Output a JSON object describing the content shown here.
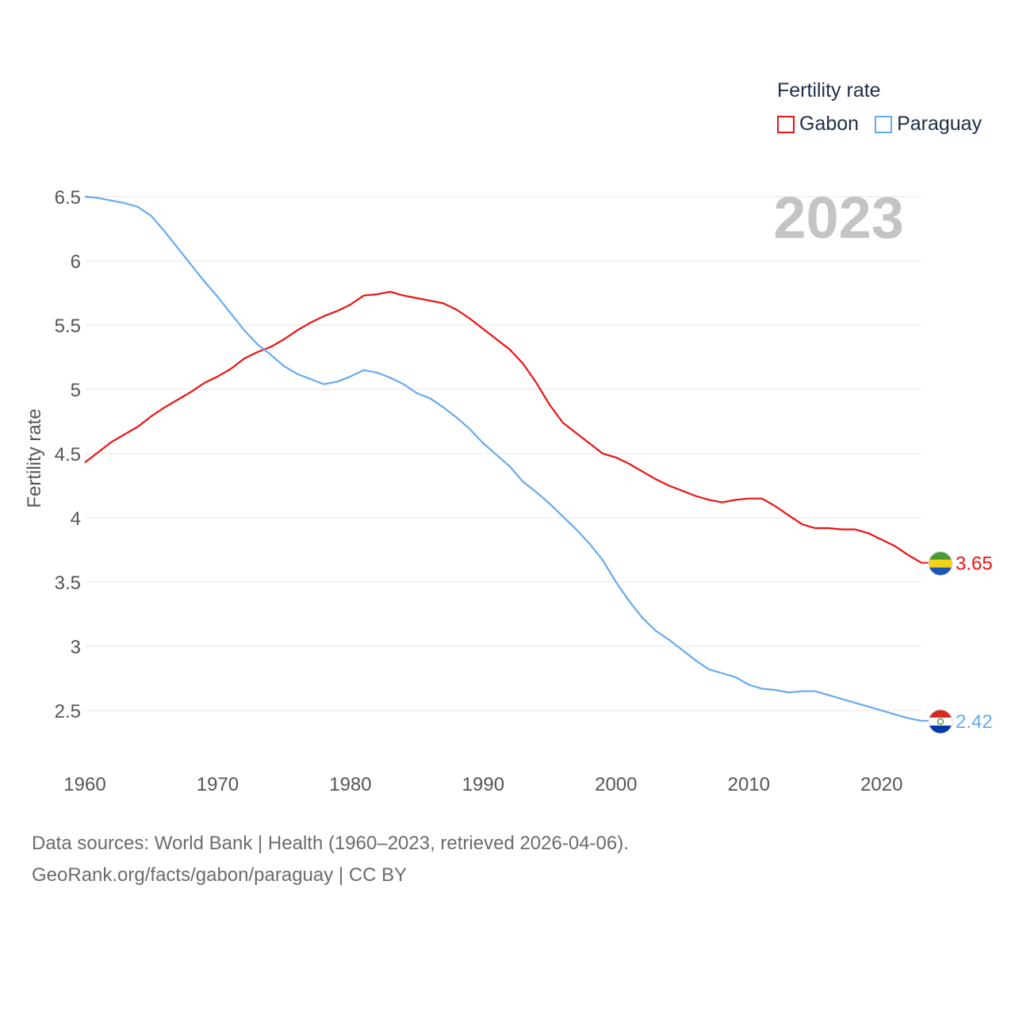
{
  "legend": {
    "title": "Fertility rate",
    "items": [
      {
        "label": "Gabon",
        "color": "#ee1111"
      },
      {
        "label": "Paraguay",
        "color": "#66aaee"
      }
    ]
  },
  "source": {
    "line1": "Data sources: World Bank | Health (1960–2023, retrieved 2026-04-06).",
    "line2": "GeoRank.org/facts/gabon/paraguay | CC BY"
  },
  "chart_data": {
    "type": "line",
    "year_label": "2023",
    "ylabel": "Fertility rate",
    "xlabel": "",
    "xlim": [
      1960,
      2023
    ],
    "ylim": [
      2.1,
      6.6
    ],
    "xticks": [
      1960,
      1970,
      1980,
      1990,
      2000,
      2010,
      2020
    ],
    "yticks": [
      2.5,
      3,
      3.5,
      4,
      4.5,
      5,
      5.5,
      6,
      6.5
    ],
    "ytick_labels": [
      "2.5",
      "3",
      "3.5",
      "4",
      "4.5",
      "5",
      "5.5",
      "6",
      "6.5"
    ],
    "grid": true,
    "x": [
      1960,
      1961,
      1962,
      1963,
      1964,
      1965,
      1966,
      1967,
      1968,
      1969,
      1970,
      1971,
      1972,
      1973,
      1974,
      1975,
      1976,
      1977,
      1978,
      1979,
      1980,
      1981,
      1982,
      1983,
      1984,
      1985,
      1986,
      1987,
      1988,
      1989,
      1990,
      1991,
      1992,
      1993,
      1994,
      1995,
      1996,
      1997,
      1998,
      1999,
      2000,
      2001,
      2002,
      2003,
      2004,
      2005,
      2006,
      2007,
      2008,
      2009,
      2010,
      2011,
      2012,
      2013,
      2014,
      2015,
      2016,
      2017,
      2018,
      2019,
      2020,
      2021,
      2022,
      2023
    ],
    "series": [
      {
        "name": "Gabon",
        "color": "#ee1111",
        "end_label": "3.65",
        "values": [
          4.43,
          4.51,
          4.59,
          4.65,
          4.71,
          4.79,
          4.86,
          4.92,
          4.98,
          5.05,
          5.1,
          5.16,
          5.24,
          5.29,
          5.33,
          5.39,
          5.46,
          5.52,
          5.57,
          5.61,
          5.66,
          5.73,
          5.74,
          5.76,
          5.73,
          5.71,
          5.69,
          5.67,
          5.62,
          5.55,
          5.47,
          5.39,
          5.31,
          5.2,
          5.05,
          4.88,
          4.74,
          4.66,
          4.58,
          4.5,
          4.47,
          4.42,
          4.36,
          4.3,
          4.25,
          4.21,
          4.17,
          4.14,
          4.12,
          4.14,
          4.15,
          4.15,
          4.09,
          4.02,
          3.95,
          3.92,
          3.92,
          3.91,
          3.91,
          3.88,
          3.83,
          3.78,
          3.71,
          3.65
        ]
      },
      {
        "name": "Paraguay",
        "color": "#66aaee",
        "end_label": "2.42",
        "values": [
          6.5,
          6.49,
          6.47,
          6.45,
          6.42,
          6.35,
          6.23,
          6.1,
          5.97,
          5.84,
          5.72,
          5.59,
          5.46,
          5.35,
          5.27,
          5.18,
          5.12,
          5.08,
          5.04,
          5.06,
          5.1,
          5.15,
          5.13,
          5.09,
          5.04,
          4.97,
          4.93,
          4.86,
          4.78,
          4.69,
          4.58,
          4.49,
          4.4,
          4.28,
          4.2,
          4.11,
          4.01,
          3.91,
          3.8,
          3.67,
          3.5,
          3.35,
          3.22,
          3.12,
          3.05,
          2.97,
          2.89,
          2.82,
          2.79,
          2.76,
          2.7,
          2.67,
          2.66,
          2.64,
          2.65,
          2.65,
          2.62,
          2.59,
          2.56,
          2.53,
          2.5,
          2.47,
          2.44,
          2.42
        ]
      }
    ]
  }
}
